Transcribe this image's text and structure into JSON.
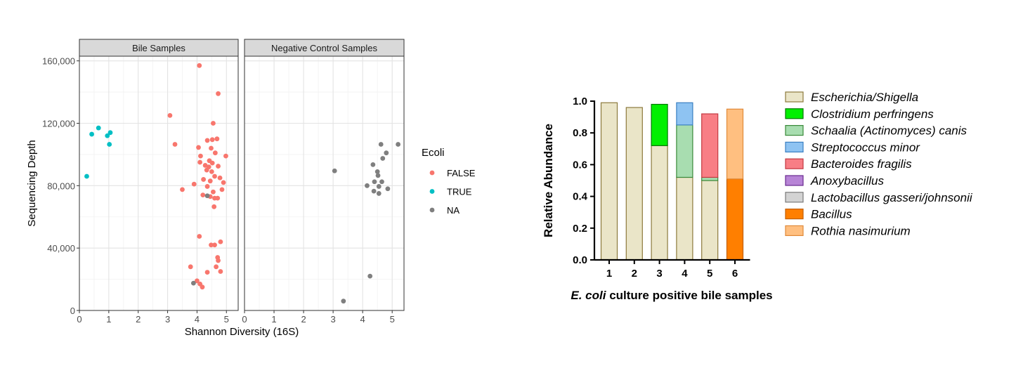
{
  "chart_data": [
    {
      "type": "scatter",
      "facets": [
        "Bile Samples",
        "Negative Control Samples"
      ],
      "xlabel": "Shannon Diversity (16S)",
      "ylabel": "Sequencing Depth",
      "xlim": [
        0,
        5.4
      ],
      "ylim": [
        0,
        163000
      ],
      "xticks": [
        0,
        1,
        2,
        3,
        4,
        5
      ],
      "yticks": [
        0,
        40000,
        80000,
        120000,
        160000
      ],
      "ytick_labels": [
        "0",
        "40,000",
        "80,000",
        "120,000",
        "160,000"
      ],
      "grid": true,
      "legend": {
        "title": "Ecoli",
        "position": "right",
        "entries": [
          {
            "label": "FALSE",
            "color": "#F8766D"
          },
          {
            "label": "TRUE",
            "color": "#00BFC4"
          },
          {
            "label": "NA",
            "color": "#7F7F7F"
          }
        ]
      },
      "series": [
        {
          "name": "FALSE",
          "facet": "Bile Samples",
          "color": "#F8766D",
          "points": [
            [
              4.08,
              157000
            ],
            [
              4.72,
              139000
            ],
            [
              3.08,
              125000
            ],
            [
              4.55,
              120000
            ],
            [
              3.25,
              106500
            ],
            [
              4.35,
              109000
            ],
            [
              4.52,
              109500
            ],
            [
              4.68,
              110000
            ],
            [
              4.05,
              104500
            ],
            [
              4.48,
              104000
            ],
            [
              4.62,
              101000
            ],
            [
              4.12,
              99000
            ],
            [
              4.98,
              99000
            ],
            [
              4.42,
              96000
            ],
            [
              4.1,
              95000
            ],
            [
              4.52,
              94500
            ],
            [
              4.28,
              93000
            ],
            [
              4.4,
              92000
            ],
            [
              4.72,
              92500
            ],
            [
              4.33,
              90000
            ],
            [
              4.5,
              89000
            ],
            [
              4.6,
              86000
            ],
            [
              4.22,
              84000
            ],
            [
              4.45,
              83000
            ],
            [
              4.78,
              85000
            ],
            [
              4.9,
              82000
            ],
            [
              3.9,
              81000
            ],
            [
              4.35,
              79500
            ],
            [
              3.5,
              77500
            ],
            [
              4.85,
              77500
            ],
            [
              4.55,
              76000
            ],
            [
              4.2,
              74000
            ],
            [
              4.45,
              73000
            ],
            [
              4.6,
              72000
            ],
            [
              4.7,
              72000
            ],
            [
              4.58,
              66500
            ],
            [
              4.08,
              47500
            ],
            [
              4.8,
              44000
            ],
            [
              4.48,
              42000
            ],
            [
              4.6,
              42000
            ],
            [
              4.7,
              34000
            ],
            [
              4.72,
              32000
            ],
            [
              3.78,
              28000
            ],
            [
              4.65,
              28000
            ],
            [
              4.8,
              25000
            ],
            [
              4.35,
              24500
            ],
            [
              4.0,
              19000
            ],
            [
              4.1,
              17000
            ],
            [
              4.18,
              15000
            ]
          ]
        },
        {
          "name": "TRUE",
          "facet": "Bile Samples",
          "color": "#00BFC4",
          "points": [
            [
              0.25,
              86000
            ],
            [
              0.42,
              113000
            ],
            [
              0.65,
              117000
            ],
            [
              0.95,
              112000
            ],
            [
              1.05,
              114000
            ],
            [
              1.02,
              106500
            ]
          ]
        },
        {
          "name": "NA",
          "facet": "Bile Samples",
          "color": "#7F7F7F",
          "points": [
            [
              3.88,
              17500
            ],
            [
              4.35,
              73500
            ]
          ]
        },
        {
          "name": "NA",
          "facet": "Negative Control Samples",
          "color": "#7F7F7F",
          "points": [
            [
              3.05,
              89500
            ],
            [
              4.62,
              106500
            ],
            [
              5.2,
              106500
            ],
            [
              4.8,
              101000
            ],
            [
              4.68,
              97500
            ],
            [
              4.35,
              93500
            ],
            [
              4.5,
              89000
            ],
            [
              4.52,
              86500
            ],
            [
              4.4,
              82500
            ],
            [
              4.65,
              82500
            ],
            [
              4.15,
              80000
            ],
            [
              4.55,
              79500
            ],
            [
              4.85,
              78000
            ],
            [
              4.38,
              76500
            ],
            [
              4.55,
              75000
            ],
            [
              4.25,
              22000
            ],
            [
              3.35,
              6000
            ]
          ]
        }
      ]
    },
    {
      "type": "bar",
      "stacked": true,
      "categories": [
        "1",
        "2",
        "3",
        "4",
        "5",
        "6"
      ],
      "xlabel_italic": "E. coli",
      "xlabel_rest": " culture positive bile samples",
      "ylabel": "Relative Abundance",
      "ylim": [
        0,
        1.0
      ],
      "yticks": [
        0.0,
        0.2,
        0.4,
        0.6,
        0.8,
        1.0
      ],
      "ytick_labels": [
        "0.0",
        "0.2",
        "0.4",
        "0.6",
        "0.8",
        "1.0"
      ],
      "legend_position": "right",
      "series": [
        {
          "name": "Escherichia/Shigella",
          "fill": "#EAE5C8",
          "stroke": "#8C7A3D",
          "values": [
            0.99,
            0.96,
            0.72,
            0.52,
            0.5,
            0
          ]
        },
        {
          "name": "Clostridium perfringens",
          "fill": "#00F000",
          "stroke": "#007700",
          "values": [
            0,
            0,
            0.26,
            0,
            0,
            0
          ]
        },
        {
          "name": "Schaalia (Actinomyces) canis",
          "fill": "#A8DDB0",
          "stroke": "#3A8A3A",
          "values": [
            0,
            0,
            0,
            0.33,
            0.02,
            0
          ]
        },
        {
          "name": "Streptococcus minor",
          "fill": "#8EC3F2",
          "stroke": "#3A7FC2",
          "values": [
            0,
            0,
            0,
            0.14,
            0,
            0
          ]
        },
        {
          "name": "Bacteroides fragilis",
          "fill": "#F87E85",
          "stroke": "#C33A42",
          "values": [
            0,
            0,
            0,
            0,
            0.4,
            0
          ]
        },
        {
          "name": "Anoxybacillus",
          "fill": "#B784D6",
          "stroke": "#6A2C8F",
          "values": [
            0,
            0,
            0,
            0,
            0,
            0
          ]
        },
        {
          "name": "Lactobacillus gasseri/johnsonii",
          "fill": "#D3D3D3",
          "stroke": "#7A7A7A",
          "values": [
            0,
            0,
            0,
            0,
            0,
            0
          ]
        },
        {
          "name": "Bacillus",
          "fill": "#FF7F00",
          "stroke": "#C35F00",
          "values": [
            0,
            0,
            0,
            0,
            0,
            0.51
          ]
        },
        {
          "name": "Rothia nasimurium",
          "fill": "#FFBF80",
          "stroke": "#E08A3A",
          "values": [
            0,
            0,
            0,
            0,
            0,
            0.44
          ]
        }
      ]
    }
  ]
}
